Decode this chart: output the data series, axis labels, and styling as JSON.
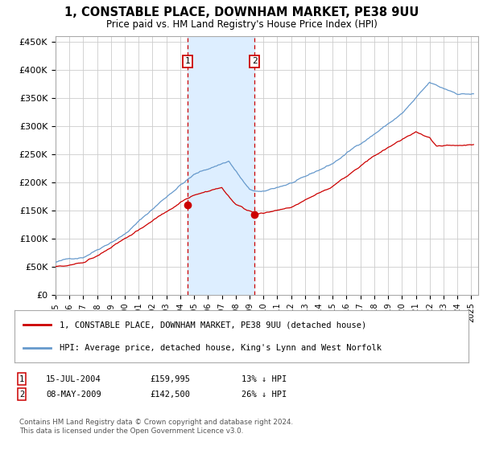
{
  "title": "1, CONSTABLE PLACE, DOWNHAM MARKET, PE38 9UU",
  "subtitle": "Price paid vs. HM Land Registry's House Price Index (HPI)",
  "legend_label_red": "1, CONSTABLE PLACE, DOWNHAM MARKET, PE38 9UU (detached house)",
  "legend_label_blue": "HPI: Average price, detached house, King's Lynn and West Norfolk",
  "footnote": "Contains HM Land Registry data © Crown copyright and database right 2024.\nThis data is licensed under the Open Government Licence v3.0.",
  "sale1_date": "15-JUL-2004",
  "sale1_price": "£159,995",
  "sale1_pct": "13% ↓ HPI",
  "sale2_date": "08-MAY-2009",
  "sale2_price": "£142,500",
  "sale2_pct": "26% ↓ HPI",
  "sale1_year": 2004.54,
  "sale2_year": 2009.36,
  "sale1_price_val": 159995,
  "sale2_price_val": 142500,
  "ylim": [
    0,
    460000
  ],
  "xlim_start": 1995,
  "xlim_end": 2025.5,
  "yticks": [
    0,
    50000,
    100000,
    150000,
    200000,
    250000,
    300000,
    350000,
    400000,
    450000
  ],
  "ytick_labels": [
    "£0",
    "£50K",
    "£100K",
    "£150K",
    "£200K",
    "£250K",
    "£300K",
    "£350K",
    "£400K",
    "£450K"
  ],
  "red_color": "#cc0000",
  "blue_color": "#6699cc",
  "background_color": "#ffffff",
  "grid_color": "#cccccc",
  "shade_color": "#ddeeff"
}
